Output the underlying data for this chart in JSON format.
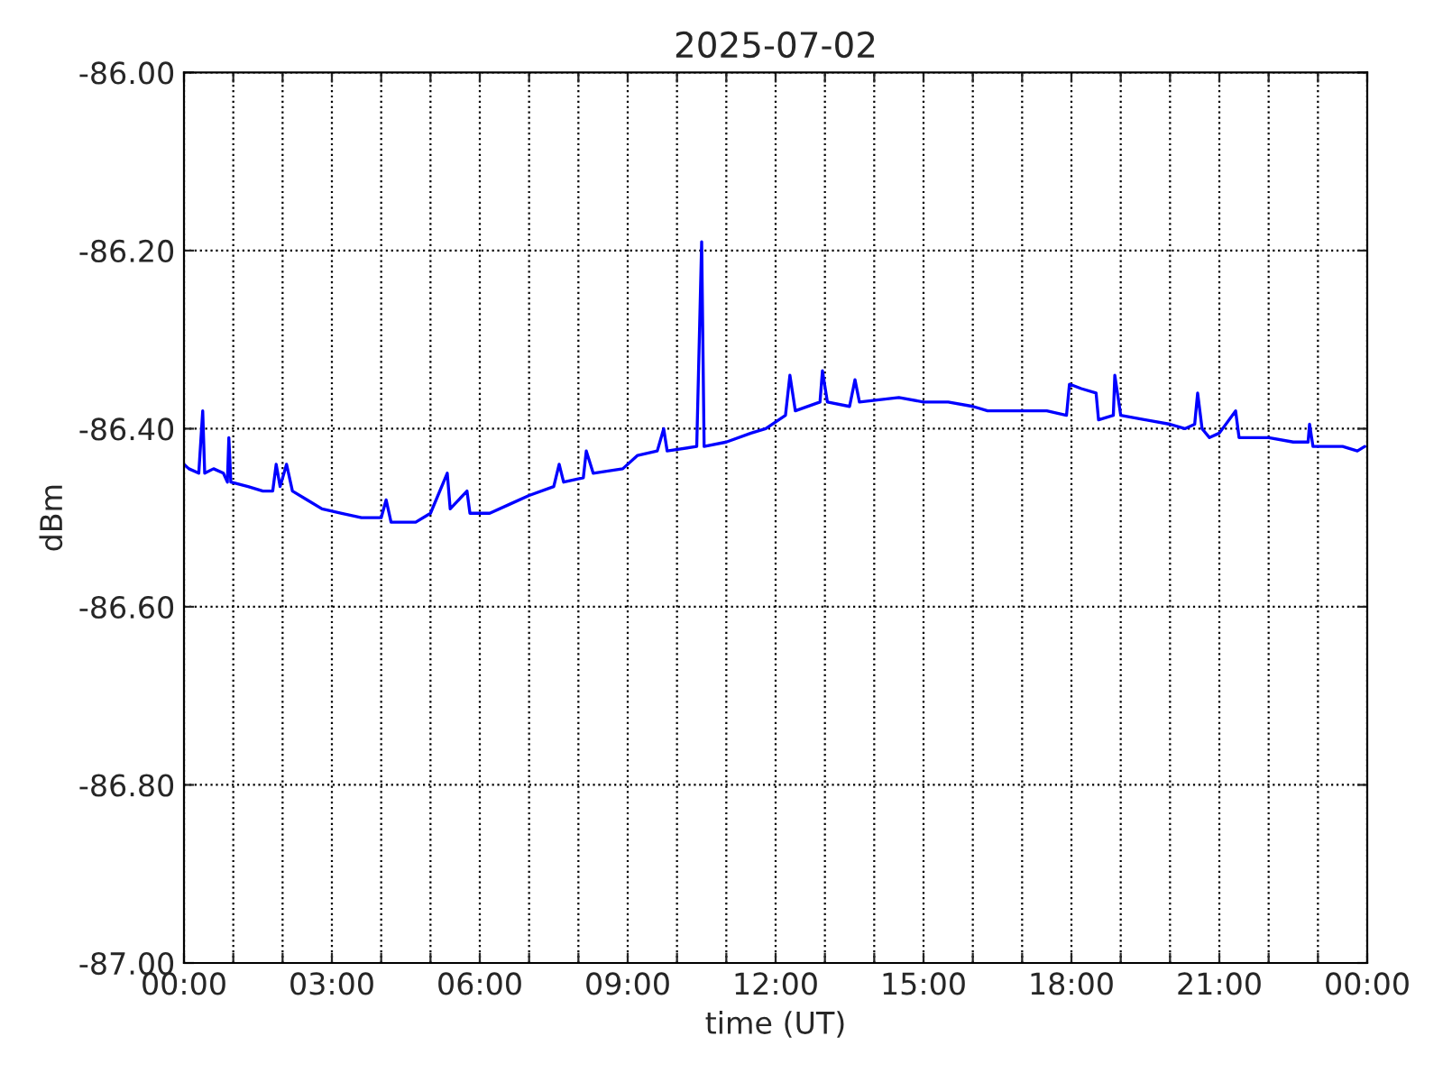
{
  "chart_data": {
    "type": "line",
    "title": "2025-07-02",
    "xlabel": "time (UT)",
    "ylabel": "dBm",
    "xlim": [
      0,
      24
    ],
    "xticks": [
      {
        "value": 0,
        "label": "00:00"
      },
      {
        "value": 1,
        "label": null
      },
      {
        "value": 2,
        "label": null
      },
      {
        "value": 3,
        "label": "03:00"
      },
      {
        "value": 4,
        "label": null
      },
      {
        "value": 5,
        "label": null
      },
      {
        "value": 6,
        "label": "06:00"
      },
      {
        "value": 7,
        "label": null
      },
      {
        "value": 8,
        "label": null
      },
      {
        "value": 9,
        "label": "09:00"
      },
      {
        "value": 10,
        "label": null
      },
      {
        "value": 11,
        "label": null
      },
      {
        "value": 12,
        "label": "12:00"
      },
      {
        "value": 13,
        "label": null
      },
      {
        "value": 14,
        "label": null
      },
      {
        "value": 15,
        "label": "15:00"
      },
      {
        "value": 16,
        "label": null
      },
      {
        "value": 17,
        "label": null
      },
      {
        "value": 18,
        "label": "18:00"
      },
      {
        "value": 19,
        "label": null
      },
      {
        "value": 20,
        "label": null
      },
      {
        "value": 21,
        "label": "21:00"
      },
      {
        "value": 22,
        "label": null
      },
      {
        "value": 23,
        "label": null
      },
      {
        "value": 24,
        "label": "00:00"
      }
    ],
    "ylim": [
      -87,
      -86
    ],
    "yticks": [
      {
        "value": -87,
        "label": "-87.00"
      },
      {
        "value": -86.8,
        "label": "-86.80"
      },
      {
        "value": -86.6,
        "label": "-86.60"
      },
      {
        "value": -86.4,
        "label": "-86.40"
      },
      {
        "value": -86.2,
        "label": "-86.20"
      },
      {
        "value": -86,
        "label": "-86.00"
      }
    ],
    "grid": true,
    "legend": false,
    "marker": "none",
    "line_style": "solid",
    "series": [
      {
        "color": "#0000ff",
        "x": [
          0.0,
          0.1,
          0.3,
          0.38,
          0.42,
          0.6,
          0.8,
          0.88,
          0.91,
          0.95,
          1.3,
          1.6,
          1.8,
          1.87,
          1.95,
          2.08,
          2.2,
          2.5,
          2.8,
          3.2,
          3.6,
          4.0,
          4.1,
          4.2,
          4.7,
          5.0,
          5.34,
          5.4,
          5.74,
          5.8,
          6.2,
          6.6,
          7.0,
          7.5,
          7.61,
          7.7,
          8.1,
          8.16,
          8.3,
          8.9,
          9.2,
          9.6,
          9.73,
          9.8,
          10.4,
          10.5,
          10.55,
          11.0,
          11.5,
          11.8,
          12.2,
          12.29,
          12.4,
          12.9,
          12.95,
          13.05,
          13.5,
          13.61,
          13.7,
          14.5,
          15.0,
          15.5,
          16.0,
          16.3,
          17.0,
          17.5,
          17.9,
          17.96,
          18.2,
          18.5,
          18.55,
          18.85,
          18.88,
          19.0,
          19.5,
          20.0,
          20.3,
          20.5,
          20.56,
          20.65,
          20.8,
          21.0,
          21.33,
          21.4,
          22.0,
          22.5,
          22.8,
          22.83,
          22.9,
          23.5,
          23.8,
          23.95
        ],
        "values": [
          -86.44,
          -86.445,
          -86.45,
          -86.38,
          -86.45,
          -86.445,
          -86.45,
          -86.46,
          -86.41,
          -86.46,
          -86.465,
          -86.47,
          -86.47,
          -86.44,
          -86.465,
          -86.44,
          -86.47,
          -86.48,
          -86.49,
          -86.495,
          -86.5,
          -86.5,
          -86.48,
          -86.505,
          -86.505,
          -86.495,
          -86.45,
          -86.49,
          -86.47,
          -86.495,
          -86.495,
          -86.485,
          -86.475,
          -86.465,
          -86.44,
          -86.46,
          -86.455,
          -86.425,
          -86.45,
          -86.445,
          -86.43,
          -86.425,
          -86.4,
          -86.425,
          -86.42,
          -86.19,
          -86.42,
          -86.415,
          -86.405,
          -86.4,
          -86.385,
          -86.34,
          -86.38,
          -86.37,
          -86.335,
          -86.37,
          -86.375,
          -86.345,
          -86.37,
          -86.365,
          -86.37,
          -86.37,
          -86.375,
          -86.38,
          -86.38,
          -86.38,
          -86.385,
          -86.35,
          -86.355,
          -86.36,
          -86.39,
          -86.385,
          -86.34,
          -86.385,
          -86.39,
          -86.395,
          -86.4,
          -86.395,
          -86.36,
          -86.4,
          -86.41,
          -86.405,
          -86.38,
          -86.41,
          -86.41,
          -86.415,
          -86.415,
          -86.395,
          -86.42,
          -86.42,
          -86.425,
          -86.42
        ]
      }
    ]
  }
}
